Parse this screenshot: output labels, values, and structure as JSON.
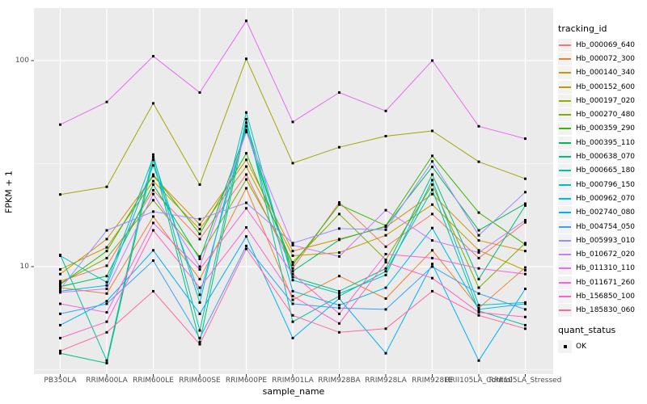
{
  "chart_data": {
    "type": "line",
    "xlabel": "sample_name",
    "ylabel": "FPKM + 1",
    "y_scale": "log10",
    "y_ticks": [
      100,
      10
    ],
    "y_tick_labels": [
      "100",
      "10"
    ],
    "y_minor_ticks": [
      31.623,
      3.162
    ],
    "ylim_approx": [
      2.9,
      185
    ],
    "grid": true,
    "panel_bg": "#EBEBEB",
    "grid_color": "#FFFFFF",
    "tick_label_color": "#4D4D4D",
    "tick_mark_color": "#333333",
    "point_color": "#000000",
    "point_shape": "square",
    "legend": {
      "color_title": "tracking_id",
      "shape_title": "quant_status",
      "shape_entries": [
        {
          "label": "OK"
        }
      ]
    },
    "categories": [
      "PB350LA",
      "RRIM600LA",
      "RRIM600LE",
      "RRIM600SE",
      "RRIM600PE",
      "RRIM901LA",
      "RRIM928BA",
      "RRIM928LA",
      "RRIM928LE",
      "RRII105LA_Control",
      "RRII105LA_Stressed"
    ],
    "series": [
      {
        "name": "Hb_000069_640",
        "color": "#F8766D",
        "values": [
          8.5,
          10.1,
          23.5,
          13.6,
          28,
          9.8,
          20.5,
          12.5,
          18,
          11,
          16.4
        ]
      },
      {
        "name": "Hb_000072_300",
        "color": "#EA8331",
        "values": [
          7.9,
          7.4,
          17.5,
          8.7,
          24,
          6.9,
          9,
          7,
          12,
          6.3,
          9.9
        ]
      },
      {
        "name": "Hb_000140_340",
        "color": "#D89000",
        "values": [
          9.2,
          13.6,
          27.5,
          16,
          33,
          11.9,
          13.6,
          15.6,
          22.5,
          13.4,
          11.9
        ]
      },
      {
        "name": "Hb_000152_600",
        "color": "#C09B00",
        "values": [
          9.7,
          12.4,
          26,
          15.2,
          30.6,
          11.3,
          11.7,
          14.2,
          20,
          12,
          9.6
        ]
      },
      {
        "name": "Hb_000197_020",
        "color": "#A3A500",
        "values": [
          22.4,
          24.4,
          62,
          25,
          102,
          31.8,
          38,
          43,
          45.6,
          32.3,
          26.7
        ]
      },
      {
        "name": "Hb_000270_480",
        "color": "#7CAE00",
        "values": [
          8.3,
          11,
          21,
          11.2,
          26.5,
          10.5,
          18,
          10.8,
          25,
          7.9,
          13
        ]
      },
      {
        "name": "Hb_000359_290",
        "color": "#39B600",
        "values": [
          8.2,
          11.9,
          28,
          14.4,
          35.5,
          10.2,
          20,
          15.8,
          34.5,
          18.3,
          12.8
        ]
      },
      {
        "name": "Hb_000395_110",
        "color": "#00BB4E",
        "values": [
          8,
          9,
          25,
          10.9,
          46,
          9.5,
          13.5,
          15.7,
          30.5,
          15,
          20.2
        ]
      },
      {
        "name": "Hb_000638_070",
        "color": "#00BF7D",
        "values": [
          3.8,
          3.4,
          33,
          4.3,
          50,
          8.9,
          7.6,
          9.8,
          28,
          8.7,
          19.8
        ]
      },
      {
        "name": "Hb_000665_180",
        "color": "#00C1A3",
        "values": [
          11.4,
          3.5,
          35,
          4.9,
          52,
          5.4,
          7.2,
          9.5,
          23.6,
          6.1,
          5.2
        ]
      },
      {
        "name": "Hb_000796_150",
        "color": "#00BFC4",
        "values": [
          11.3,
          8.4,
          34,
          6.7,
          56,
          8.6,
          7.4,
          9.1,
          26.3,
          6.5,
          6.7
        ]
      },
      {
        "name": "Hb_000962_070",
        "color": "#00BAE0",
        "values": [
          7.6,
          8.1,
          31,
          7.3,
          48,
          7.6,
          6.5,
          7.9,
          15.4,
          6.2,
          6.6
        ]
      },
      {
        "name": "Hb_002740_080",
        "color": "#00B0F6",
        "values": [
          5.2,
          6.8,
          12,
          5.9,
          14,
          4.5,
          7,
          3.8,
          10.3,
          3.5,
          7.8
        ]
      },
      {
        "name": "Hb_004754_050",
        "color": "#35A2FF",
        "values": [
          5.9,
          6.6,
          10.7,
          4.5,
          12.6,
          6.6,
          6.3,
          6.2,
          10,
          7.4,
          6.2
        ]
      },
      {
        "name": "Hb_005993_010",
        "color": "#9590FF",
        "values": [
          7.8,
          15,
          18.5,
          17,
          20.4,
          13,
          15.3,
          15.1,
          32.4,
          14.2,
          23
        ]
      },
      {
        "name": "Hb_010672_020",
        "color": "#C77CFF",
        "values": [
          7.5,
          7.8,
          22.5,
          10,
          45,
          12.7,
          11.2,
          18.8,
          13.4,
          11.7,
          16.8
        ]
      },
      {
        "name": "Hb_011310_110",
        "color": "#E76BF3",
        "values": [
          48.9,
          63,
          105,
          70,
          156,
          50.4,
          70,
          57,
          100,
          48,
          41.8
        ]
      },
      {
        "name": "Hb_011671_260",
        "color": "#FA62DB",
        "values": [
          6.6,
          6,
          16.3,
          9.7,
          19.2,
          9.2,
          5.9,
          11.5,
          11,
          9.8,
          9.2
        ]
      },
      {
        "name": "Hb_156850_100",
        "color": "#FF61C9",
        "values": [
          4.5,
          5.4,
          15,
          7.9,
          15.5,
          7.2,
          5.3,
          10.5,
          8.8,
          6,
          5.7
        ]
      },
      {
        "name": "Hb_185830_060",
        "color": "#FF67A4",
        "values": [
          3.9,
          4.8,
          7.6,
          4.2,
          12.2,
          5.8,
          4.8,
          5,
          7.6,
          5.8,
          5
        ]
      }
    ]
  }
}
